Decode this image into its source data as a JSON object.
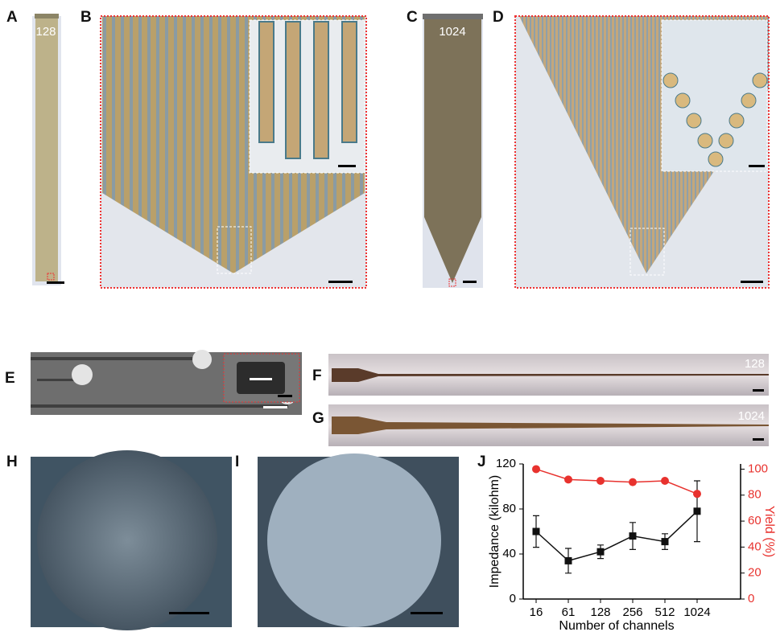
{
  "panel_labels": [
    "A",
    "B",
    "C",
    "D",
    "E",
    "F",
    "G",
    "H",
    "I",
    "J"
  ],
  "annotations": [
    "128",
    "1024",
    "128",
    "1024"
  ],
  "chart_data": {
    "type": "line",
    "ylabel": "Impedance (kilohm)",
    "y2label": "Yield (%)",
    "xlabel": "Number of channels",
    "categories": [
      "16",
      "61",
      "128",
      "256",
      "512",
      "1024"
    ],
    "ylim": [
      0,
      120
    ],
    "yticks": [
      0,
      40,
      80,
      120
    ],
    "y2lim": [
      0,
      104
    ],
    "y2ticks": [
      0,
      20,
      40,
      60,
      80,
      100
    ],
    "series": [
      {
        "color": "#111111",
        "marker": "square",
        "values": [
          60,
          34,
          42,
          56,
          51,
          78
        ],
        "errors": [
          14,
          11,
          6,
          12,
          7,
          27
        ]
      },
      {
        "color": "#e8322e",
        "marker": "circle",
        "axis": "y2",
        "values": [
          100,
          92,
          91,
          90,
          91,
          81
        ]
      }
    ]
  }
}
